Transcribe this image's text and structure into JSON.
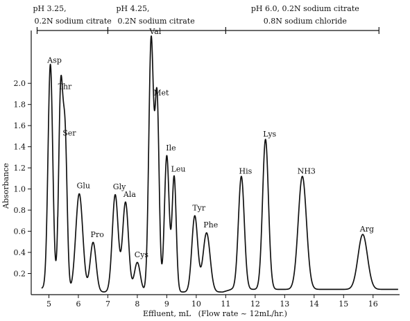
{
  "chart_data": {
    "type": "line",
    "title": "",
    "xlabel": "Effluent, mL   (Flow rate ~ 12mL/hr.)",
    "ylabel": "Absorbance",
    "xlim": [
      4.4,
      16.9
    ],
    "ylim": [
      0,
      2.5
    ],
    "grid": false,
    "x_ticks": [
      "5",
      "6",
      "7",
      "8",
      "9",
      "10",
      "11",
      "12",
      "13",
      "14",
      "15",
      "16"
    ],
    "y_ticks": [
      "0.2",
      "0.4",
      "0.6",
      "0.8",
      "1.0",
      "1.2",
      "1.4",
      "1.6",
      "1.8",
      "2.0"
    ],
    "buffers": [
      {
        "line1": "pH 3.25,",
        "line2": "0.2N sodium citrate",
        "start": 4.6,
        "end": 7.0
      },
      {
        "line1": "pH 4.25,",
        "line2": "0.2N sodium citrate",
        "start": 7.0,
        "end": 11.0
      },
      {
        "line1": "pH 6.0, 0.2N sodium citrate",
        "line2": "0.8N sodium chloride",
        "start": 11.0,
        "end": 16.2
      }
    ],
    "peaks": [
      {
        "label": "Asp",
        "x": 5.05,
        "y": 2.15,
        "width": 0.08
      },
      {
        "label": "Thr",
        "x": 5.4,
        "y": 1.9,
        "width": 0.07
      },
      {
        "label": "Ser",
        "x": 5.55,
        "y": 1.46,
        "width": 0.07
      },
      {
        "label": "Glu",
        "x": 6.03,
        "y": 0.96,
        "width": 0.12
      },
      {
        "label": "Pro",
        "x": 6.5,
        "y": 0.5,
        "width": 0.1
      },
      {
        "label": "Gly",
        "x": 7.25,
        "y": 0.95,
        "width": 0.1
      },
      {
        "label": "Ala",
        "x": 7.6,
        "y": 0.88,
        "width": 0.1
      },
      {
        "label": "Cys",
        "x": 8.0,
        "y": 0.31,
        "width": 0.1
      },
      {
        "label": "Val",
        "x": 8.47,
        "y": 2.42,
        "width": 0.08
      },
      {
        "label": "Met",
        "x": 8.67,
        "y": 1.84,
        "width": 0.07
      },
      {
        "label": "Ile",
        "x": 9.0,
        "y": 1.32,
        "width": 0.08
      },
      {
        "label": "Leu",
        "x": 9.25,
        "y": 1.12,
        "width": 0.07
      },
      {
        "label": "Tyr",
        "x": 9.95,
        "y": 0.75,
        "width": 0.1
      },
      {
        "label": "Phe",
        "x": 10.35,
        "y": 0.59,
        "width": 0.12
      },
      {
        "label": "His",
        "x": 11.53,
        "y": 1.1,
        "width": 0.1
      },
      {
        "label": "Lys",
        "x": 12.35,
        "y": 1.45,
        "width": 0.1
      },
      {
        "label": "NH3",
        "x": 13.6,
        "y": 1.1,
        "width": 0.14
      },
      {
        "label": "Arg",
        "x": 15.65,
        "y": 0.55,
        "width": 0.16
      }
    ]
  }
}
